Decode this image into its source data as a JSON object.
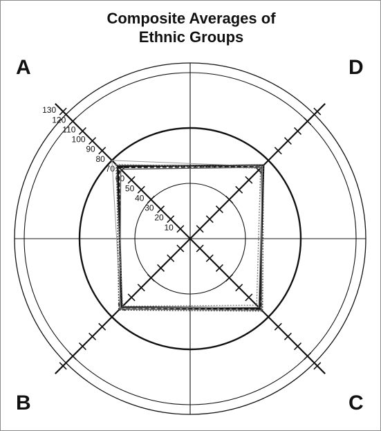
{
  "chart_data": {
    "type": "radar",
    "title_lines": [
      "Composite Averages of",
      "Ethnic Groups"
    ],
    "quadrant_labels": [
      "A",
      "D",
      "B",
      "C"
    ],
    "axes": [
      "A",
      "D",
      "C",
      "B"
    ],
    "axis_min": 0,
    "axis_max": 130,
    "tick_step": 10,
    "tick_labels": [
      "10",
      "20",
      "30",
      "40",
      "50",
      "60",
      "70",
      "80",
      "90",
      "100",
      "110",
      "120",
      "130"
    ],
    "rings": [
      40,
      80,
      120
    ],
    "grid": true,
    "series": [
      {
        "values": {
          "A": 74,
          "D": 75,
          "C": 71,
          "B": 70
        },
        "style": "solid-bold",
        "color": "#111111"
      },
      {
        "values": {
          "A": 73,
          "D": 74,
          "C": 72,
          "B": 71
        },
        "style": "dashed-bold",
        "color": "#111111"
      },
      {
        "values": {
          "A": 71,
          "D": 73,
          "C": 73,
          "B": 72
        },
        "style": "solid",
        "color": "#555555"
      },
      {
        "values": {
          "A": 76,
          "D": 72,
          "C": 68,
          "B": 69
        },
        "style": "dotted",
        "color": "#777777"
      },
      {
        "values": {
          "A": 80,
          "D": 74,
          "C": 70,
          "B": 71
        },
        "style": "solid-thin",
        "color": "#999999"
      },
      {
        "values": {
          "A": 75,
          "D": 75,
          "C": 74,
          "B": 73
        },
        "style": "dotted",
        "color": "#444444"
      }
    ]
  }
}
